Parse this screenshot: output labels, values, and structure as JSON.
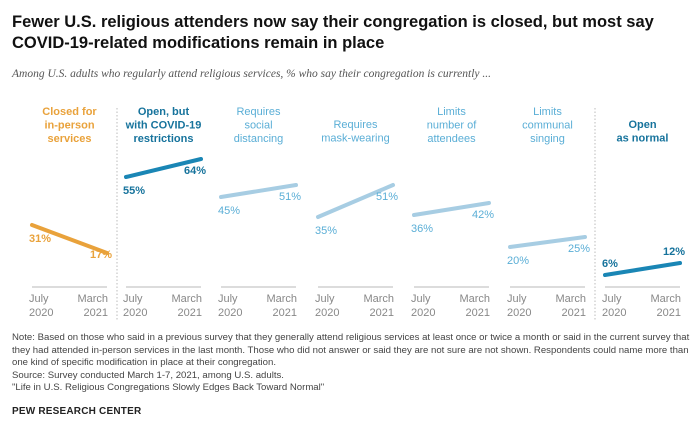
{
  "title": "Fewer U.S. religious attenders now say their congregation is closed, but most say COVID-19-related modifications remain in place",
  "subtitle": "Among U.S. adults who regularly attend religious services, % who say their congregation is currently ...",
  "chart_data": {
    "type": "line",
    "x": [
      "July 2020",
      "March 2021"
    ],
    "x_tick_lines": [
      [
        "July",
        "2020"
      ],
      [
        "March",
        "2021"
      ]
    ],
    "ylim": [
      0,
      70
    ],
    "grid": false,
    "panels": [
      {
        "name": "Closed for in-person services",
        "label_lines": [
          "Closed for",
          "in-person",
          "services"
        ],
        "values": [
          31,
          17
        ],
        "labels": [
          "31%",
          "17%"
        ],
        "color": "#e9a23b",
        "text_color": "#e9a23b",
        "bold": true
      },
      {
        "name": "Open, but with COVID-19 restrictions",
        "label_lines": [
          "Open, but",
          "with COVID-19",
          "restrictions"
        ],
        "values": [
          55,
          64
        ],
        "labels": [
          "55%",
          "64%"
        ],
        "color": "#1a86b5",
        "text_color": "#16739c",
        "bold": true
      },
      {
        "name": "Requires social distancing",
        "label_lines": [
          "Requires",
          "social",
          "distancing"
        ],
        "values": [
          45,
          51
        ],
        "labels": [
          "45%",
          "51%"
        ],
        "color": "#a7cde3",
        "text_color": "#5aaed6",
        "bold": false
      },
      {
        "name": "Requires mask-wearing",
        "label_lines": [
          "Requires",
          "mask-wearing"
        ],
        "values": [
          35,
          51
        ],
        "labels": [
          "35%",
          "51%"
        ],
        "color": "#a7cde3",
        "text_color": "#5aaed6",
        "bold": false
      },
      {
        "name": "Limits number of attendees",
        "label_lines": [
          "Limits",
          "number of",
          "attendees"
        ],
        "values": [
          36,
          42
        ],
        "labels": [
          "36%",
          "42%"
        ],
        "color": "#a7cde3",
        "text_color": "#5aaed6",
        "bold": false
      },
      {
        "name": "Limits communal singing",
        "label_lines": [
          "Limits",
          "communal",
          "singing"
        ],
        "values": [
          20,
          25
        ],
        "labels": [
          "20%",
          "25%"
        ],
        "color": "#a7cde3",
        "text_color": "#5aaed6",
        "bold": false
      },
      {
        "name": "Open as normal",
        "label_lines": [
          "Open",
          "as normal"
        ],
        "values": [
          6,
          12
        ],
        "labels": [
          "6%",
          "12%"
        ],
        "color": "#1a86b5",
        "text_color": "#16739c",
        "bold": true
      }
    ]
  },
  "note": "Note: Based on those who said in a previous survey that they generally attend religious services at least once or twice a month or said in the current survey that they had attended in-person services in the last month. Those who did not answer or said they are not sure are not shown. Respondents could name more than one kind of specific modification in place at their congregation.",
  "source": "Source: Survey conducted March 1-7, 2021, among U.S. adults.",
  "report": "\"Life in U.S. Religious Congregations Slowly Edges Back Toward Normal\"",
  "brand": "PEW RESEARCH CENTER"
}
